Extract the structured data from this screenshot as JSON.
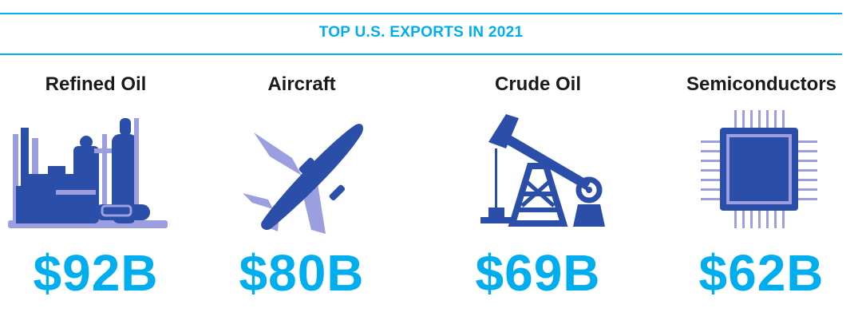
{
  "header": {
    "title": "TOP U.S. EXPORTS IN 2021"
  },
  "exports": [
    {
      "label": "Refined Oil",
      "value": "$92B",
      "icon": "refinery-icon"
    },
    {
      "label": "Aircraft",
      "value": "$80B",
      "icon": "airplane-icon"
    },
    {
      "label": "Crude Oil",
      "value": "$69B",
      "icon": "oil-pump-icon"
    },
    {
      "label": "Semiconductors",
      "value": "$62B",
      "icon": "microchip-icon"
    }
  ],
  "colors": {
    "accent": "#00aeef",
    "icon_dark": "#2b4ea8",
    "icon_light": "#9b9fe0"
  }
}
